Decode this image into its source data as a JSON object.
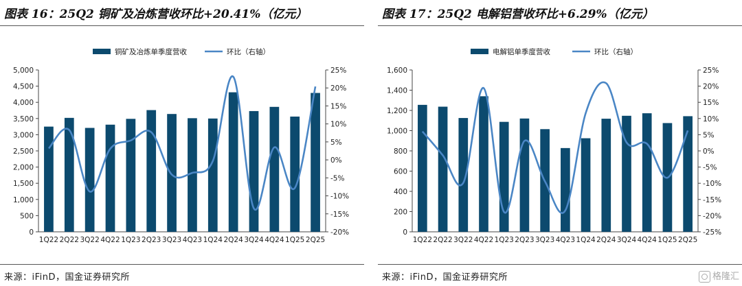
{
  "charts": [
    {
      "title": "图表 16：25Q2 铜矿及冶炼营收环比+20.41%（亿元）",
      "source": "来源：iFinD，国金证券研究所"
    },
    {
      "title": "图表 17：25Q2 电解铝营收环比+6.29%（亿元）",
      "source": "来源：iFinD，国金证券研究所"
    }
  ],
  "colors": {
    "bar": "#0c4a6e",
    "line": "#4a86c5"
  },
  "watermark": {
    "text": "格隆汇",
    "icon": "gelonghui-logo-icon"
  },
  "chart_data": [
    {
      "type": "bar",
      "title": "图表 16：25Q2 铜矿及冶炼营收环比+20.41%（亿元）",
      "categories": [
        "1Q22",
        "2Q22",
        "3Q22",
        "4Q22",
        "1Q23",
        "2Q23",
        "3Q23",
        "4Q23",
        "1Q24",
        "2Q24",
        "3Q24",
        "4Q24",
        "1Q25",
        "2Q25"
      ],
      "series": [
        {
          "name": "铜矿及冶炼单季度营收",
          "type": "bar",
          "axis": "left",
          "values": [
            3250,
            3520,
            3210,
            3310,
            3490,
            3760,
            3640,
            3510,
            3500,
            4310,
            3730,
            3860,
            3560,
            4290
          ]
        },
        {
          "name": "环比（右轴）",
          "type": "line",
          "axis": "right",
          "values": [
            3.2,
            8.3,
            -8.8,
            3.1,
            5.4,
            7.7,
            -4.1,
            -3.6,
            -0.3,
            23.1,
            -13.5,
            3.5,
            -7.8,
            20.41
          ]
        }
      ],
      "left_axis": {
        "min": 0,
        "max": 5000,
        "step": 500,
        "ticks": [
          "0",
          "500",
          "1,000",
          "1,500",
          "2,000",
          "2,500",
          "3,000",
          "3,500",
          "4,000",
          "4,500",
          "5,000"
        ]
      },
      "right_axis": {
        "min": -20,
        "max": 25,
        "step": 5,
        "ticks": [
          "-20%",
          "-15%",
          "-10%",
          "-5%",
          "0%",
          "5%",
          "10%",
          "15%",
          "20%",
          "25%"
        ]
      },
      "legend_position": "top",
      "grid": false
    },
    {
      "type": "bar",
      "title": "图表 17：25Q2 电解铝营收环比+6.29%（亿元）",
      "categories": [
        "1Q22",
        "2Q22",
        "3Q22",
        "4Q22",
        "1Q23",
        "2Q23",
        "3Q23",
        "4Q23",
        "1Q24",
        "2Q24",
        "3Q24",
        "4Q24",
        "1Q25",
        "2Q25"
      ],
      "series": [
        {
          "name": "电解铝单季度营收",
          "type": "bar",
          "axis": "left",
          "values": [
            1255,
            1237,
            1125,
            1340,
            1087,
            1120,
            1015,
            828,
            925,
            1118,
            1147,
            1172,
            1075,
            1143
          ]
        },
        {
          "name": "环比（右轴）",
          "type": "line",
          "axis": "right",
          "values": [
            6.0,
            -1.4,
            -9.9,
            19.4,
            -18.9,
            3.1,
            -9.4,
            -18.4,
            11.7,
            20.9,
            2.6,
            2.2,
            -8.3,
            6.29
          ]
        }
      ],
      "left_axis": {
        "min": 0,
        "max": 1600,
        "step": 200,
        "ticks": [
          "0",
          "200",
          "400",
          "600",
          "800",
          "1,000",
          "1,200",
          "1,400",
          "1,600"
        ]
      },
      "right_axis": {
        "min": -25,
        "max": 25,
        "step": 5,
        "ticks": [
          "-25%",
          "-20%",
          "-15%",
          "-10%",
          "-5%",
          "0%",
          "5%",
          "10%",
          "15%",
          "20%",
          "25%"
        ]
      },
      "legend_position": "top",
      "grid": false
    }
  ]
}
